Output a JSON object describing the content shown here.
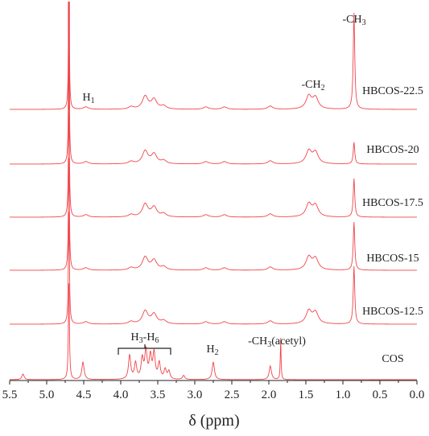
{
  "chart_data": {
    "type": "line",
    "title": "",
    "xlabel": "δ (ppm)",
    "ylabel": "",
    "xlim": [
      5.5,
      0.0
    ],
    "x_reversed": true,
    "grid": false,
    "color": "#f0444a",
    "x_ticks": [
      "5.5",
      "5.0",
      "4.5",
      "4.0",
      "3.5",
      "3.0",
      "2.5",
      "2.0",
      "1.5",
      "1.0",
      "0.5",
      "0.0"
    ],
    "series": [
      {
        "name": "HBCOS-22.5",
        "values": [
          {
            "ppm": 4.7,
            "h": 130
          },
          {
            "ppm": 4.47,
            "h": 3
          },
          {
            "ppm": 3.86,
            "h": 3
          },
          {
            "ppm": 3.67,
            "h": 16
          },
          {
            "ppm": 3.55,
            "h": 12
          },
          {
            "ppm": 3.42,
            "h": 4
          },
          {
            "ppm": 2.85,
            "h": 3
          },
          {
            "ppm": 2.6,
            "h": 3
          },
          {
            "ppm": 1.98,
            "h": 4
          },
          {
            "ppm": 1.46,
            "h": 16
          },
          {
            "ppm": 1.37,
            "h": 14
          },
          {
            "ppm": 0.85,
            "h": 120
          }
        ]
      },
      {
        "name": "HBCOS-20",
        "values": [
          {
            "ppm": 4.7,
            "h": 140
          },
          {
            "ppm": 4.47,
            "h": 3
          },
          {
            "ppm": 3.86,
            "h": 3
          },
          {
            "ppm": 3.67,
            "h": 16
          },
          {
            "ppm": 3.55,
            "h": 12
          },
          {
            "ppm": 3.42,
            "h": 4
          },
          {
            "ppm": 2.85,
            "h": 3
          },
          {
            "ppm": 2.6,
            "h": 3
          },
          {
            "ppm": 1.98,
            "h": 4
          },
          {
            "ppm": 1.46,
            "h": 16
          },
          {
            "ppm": 1.37,
            "h": 14
          },
          {
            "ppm": 0.85,
            "h": 27
          }
        ]
      },
      {
        "name": "HBCOS-17.5",
        "values": [
          {
            "ppm": 4.7,
            "h": 140
          },
          {
            "ppm": 4.47,
            "h": 3
          },
          {
            "ppm": 3.86,
            "h": 3
          },
          {
            "ppm": 3.67,
            "h": 16
          },
          {
            "ppm": 3.55,
            "h": 12
          },
          {
            "ppm": 3.42,
            "h": 4
          },
          {
            "ppm": 2.85,
            "h": 3
          },
          {
            "ppm": 2.6,
            "h": 3
          },
          {
            "ppm": 1.98,
            "h": 4
          },
          {
            "ppm": 1.46,
            "h": 16
          },
          {
            "ppm": 1.37,
            "h": 14
          },
          {
            "ppm": 0.85,
            "h": 48
          }
        ]
      },
      {
        "name": "HBCOS-15",
        "values": [
          {
            "ppm": 4.7,
            "h": 140
          },
          {
            "ppm": 4.47,
            "h": 3
          },
          {
            "ppm": 3.86,
            "h": 3
          },
          {
            "ppm": 3.67,
            "h": 16
          },
          {
            "ppm": 3.55,
            "h": 12
          },
          {
            "ppm": 3.42,
            "h": 4
          },
          {
            "ppm": 2.85,
            "h": 3
          },
          {
            "ppm": 2.6,
            "h": 3
          },
          {
            "ppm": 1.98,
            "h": 4
          },
          {
            "ppm": 1.46,
            "h": 16
          },
          {
            "ppm": 1.37,
            "h": 14
          },
          {
            "ppm": 0.85,
            "h": 60
          }
        ]
      },
      {
        "name": "HBCOS-12.5",
        "values": [
          {
            "ppm": 4.7,
            "h": 140
          },
          {
            "ppm": 4.47,
            "h": 3
          },
          {
            "ppm": 3.86,
            "h": 3
          },
          {
            "ppm": 3.67,
            "h": 16
          },
          {
            "ppm": 3.55,
            "h": 12
          },
          {
            "ppm": 3.42,
            "h": 4
          },
          {
            "ppm": 2.85,
            "h": 3
          },
          {
            "ppm": 2.6,
            "h": 3
          },
          {
            "ppm": 1.98,
            "h": 4
          },
          {
            "ppm": 1.46,
            "h": 16
          },
          {
            "ppm": 1.37,
            "h": 14
          },
          {
            "ppm": 0.85,
            "h": 72
          }
        ]
      },
      {
        "name": "COS",
        "values": [
          {
            "ppm": 5.32,
            "h": 7
          },
          {
            "ppm": 4.7,
            "h": 120
          },
          {
            "ppm": 4.51,
            "h": 22
          },
          {
            "ppm": 3.88,
            "h": 30
          },
          {
            "ppm": 3.8,
            "h": 20
          },
          {
            "ppm": 3.71,
            "h": 25
          },
          {
            "ppm": 3.66,
            "h": 35
          },
          {
            "ppm": 3.6,
            "h": 28
          },
          {
            "ppm": 3.55,
            "h": 32
          },
          {
            "ppm": 3.48,
            "h": 20
          },
          {
            "ppm": 3.4,
            "h": 12
          },
          {
            "ppm": 3.35,
            "h": 10
          },
          {
            "ppm": 3.15,
            "h": 5
          },
          {
            "ppm": 2.75,
            "h": 22
          },
          {
            "ppm": 1.98,
            "h": 17
          },
          {
            "ppm": 1.84,
            "h": 52
          }
        ]
      }
    ],
    "annotations": [
      {
        "text": "H1",
        "base": "H",
        "sub": "1",
        "near_ppm": 4.47
      },
      {
        "text": "H3-H6",
        "near_ppm": 3.6
      },
      {
        "text": "H2",
        "base": "H",
        "sub": "2",
        "near_ppm": 2.75
      },
      {
        "text": "-CH3(acetyl)",
        "near_ppm": 1.84
      },
      {
        "text": "-CH2",
        "base": "-CH",
        "sub": "2",
        "near_ppm": 1.42
      },
      {
        "text": "-CH3",
        "base": "-CH",
        "sub": "3",
        "near_ppm": 0.85
      }
    ]
  }
}
